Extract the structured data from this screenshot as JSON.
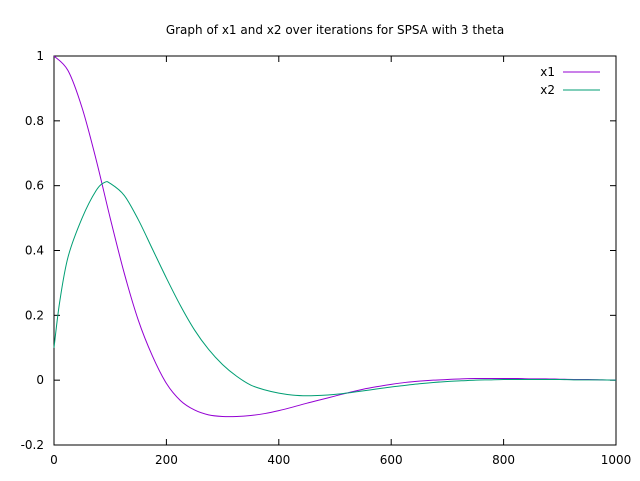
{
  "chart_data": {
    "type": "line",
    "title": "Graph of x1 and x2 over iterations for SPSA with 3 theta",
    "xlabel": "",
    "ylabel": "",
    "xlim": [
      0,
      1000
    ],
    "ylim": [
      -0.2,
      1
    ],
    "xticks": [
      0,
      200,
      400,
      600,
      800,
      1000
    ],
    "yticks": [
      -0.2,
      0,
      0.2,
      0.4,
      0.6,
      0.8,
      1
    ],
    "xtick_labels": [
      "0",
      "200",
      "400",
      "600",
      "800",
      "1000"
    ],
    "ytick_labels": [
      "-0.2",
      "0",
      "0.2",
      "0.4",
      "0.6",
      "0.8",
      "1"
    ],
    "grid": false,
    "legend_position": "top-right",
    "series": [
      {
        "name": "x1",
        "color": "#9400d3",
        "x": [
          0,
          25,
          50,
          75,
          100,
          125,
          150,
          175,
          200,
          225,
          250,
          275,
          300,
          325,
          350,
          375,
          400,
          425,
          450,
          475,
          500,
          525,
          550,
          575,
          600,
          625,
          650,
          675,
          700,
          725,
          750,
          775,
          800,
          825,
          850,
          875,
          900,
          925,
          950,
          975,
          1000
        ],
        "y": [
          1.0,
          0.955,
          0.84,
          0.68,
          0.5,
          0.33,
          0.185,
          0.075,
          -0.01,
          -0.063,
          -0.092,
          -0.107,
          -0.112,
          -0.112,
          -0.109,
          -0.103,
          -0.094,
          -0.083,
          -0.071,
          -0.06,
          -0.049,
          -0.038,
          -0.028,
          -0.02,
          -0.013,
          -0.007,
          -0.003,
          0.0,
          0.002,
          0.004,
          0.005,
          0.005,
          0.005,
          0.005,
          0.004,
          0.004,
          0.003,
          0.002,
          0.002,
          0.001,
          0.0
        ]
      },
      {
        "name": "x2",
        "color": "#009e73",
        "x": [
          0,
          10,
          25,
          50,
          75,
          90,
          100,
          125,
          150,
          175,
          200,
          225,
          250,
          275,
          300,
          325,
          350,
          375,
          400,
          425,
          450,
          475,
          500,
          525,
          550,
          575,
          600,
          625,
          650,
          675,
          700,
          725,
          750,
          775,
          800,
          825,
          850,
          875,
          900,
          925,
          950,
          975,
          1000
        ],
        "y": [
          0.1,
          0.24,
          0.38,
          0.5,
          0.585,
          0.61,
          0.607,
          0.57,
          0.495,
          0.405,
          0.315,
          0.23,
          0.155,
          0.095,
          0.048,
          0.012,
          -0.015,
          -0.03,
          -0.04,
          -0.046,
          -0.048,
          -0.047,
          -0.044,
          -0.039,
          -0.033,
          -0.027,
          -0.021,
          -0.016,
          -0.011,
          -0.007,
          -0.004,
          -0.002,
          0.0,
          0.001,
          0.002,
          0.002,
          0.002,
          0.002,
          0.002,
          0.001,
          0.001,
          0.001,
          0.0
        ]
      }
    ]
  }
}
